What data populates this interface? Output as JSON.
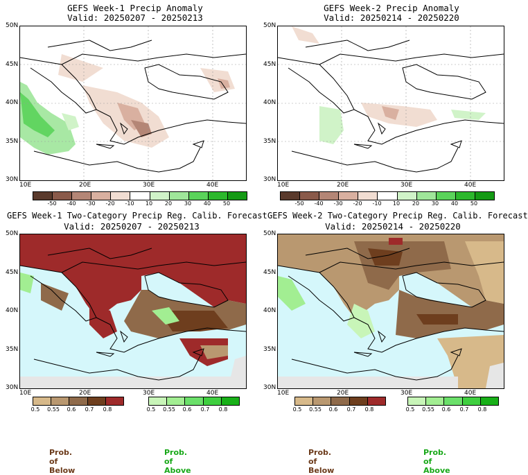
{
  "panels": [
    {
      "title": "GEFS Week-1 Precip Anomaly",
      "valid": "Valid: 20250207 - 20250213"
    },
    {
      "title": "GEFS Week-2 Precip Anomaly",
      "valid": "Valid: 20250214 - 20250220"
    },
    {
      "title": "GEFS Week-1 Two-Category Precip Reg. Calib. Forecast",
      "valid": "Valid: 20250207 - 20250213"
    },
    {
      "title": "GEFS Week-2 Two-Category Precip Reg. Calib. Forecast",
      "valid": "Valid: 20250214 - 20250220"
    }
  ],
  "lat_labels": [
    "50N",
    "45N",
    "40N",
    "35N",
    "30N"
  ],
  "lon_labels": [
    "10E",
    "20E",
    "30E",
    "40E"
  ],
  "anomaly_scale": {
    "ticks": [
      "-50",
      "-40",
      "-30",
      "-20",
      "-10",
      "10",
      "20",
      "30",
      "40",
      "50"
    ],
    "colors": [
      "#5a3a2c",
      "#8a5a4a",
      "#b48676",
      "#d9b0a0",
      "#f1ddd2",
      "#ffffff",
      "#d0f3c8",
      "#9fe69a",
      "#5ad35a",
      "#2cb82c",
      "#149a14"
    ]
  },
  "prob_scale": {
    "below_ticks": [
      "0.5",
      "0.55",
      "0.6",
      "0.7",
      "0.8"
    ],
    "above_ticks": [
      "0.5",
      "0.55",
      "0.6",
      "0.7",
      "0.8"
    ],
    "below_colors": [
      "#d7b98a",
      "#b99870",
      "#8f6a4a",
      "#6e3e1e",
      "#9e2a2a"
    ],
    "above_colors": [
      "#c8f5b8",
      "#a2ee92",
      "#6be06a",
      "#3fcf3f",
      "#18b018"
    ]
  },
  "footer": {
    "below": "Prob. of Below",
    "above": "Prob. of Above"
  },
  "colors": {
    "sea": "#d5f7fb",
    "below_text": "#6b3a1a",
    "above_text": "#18a818"
  }
}
